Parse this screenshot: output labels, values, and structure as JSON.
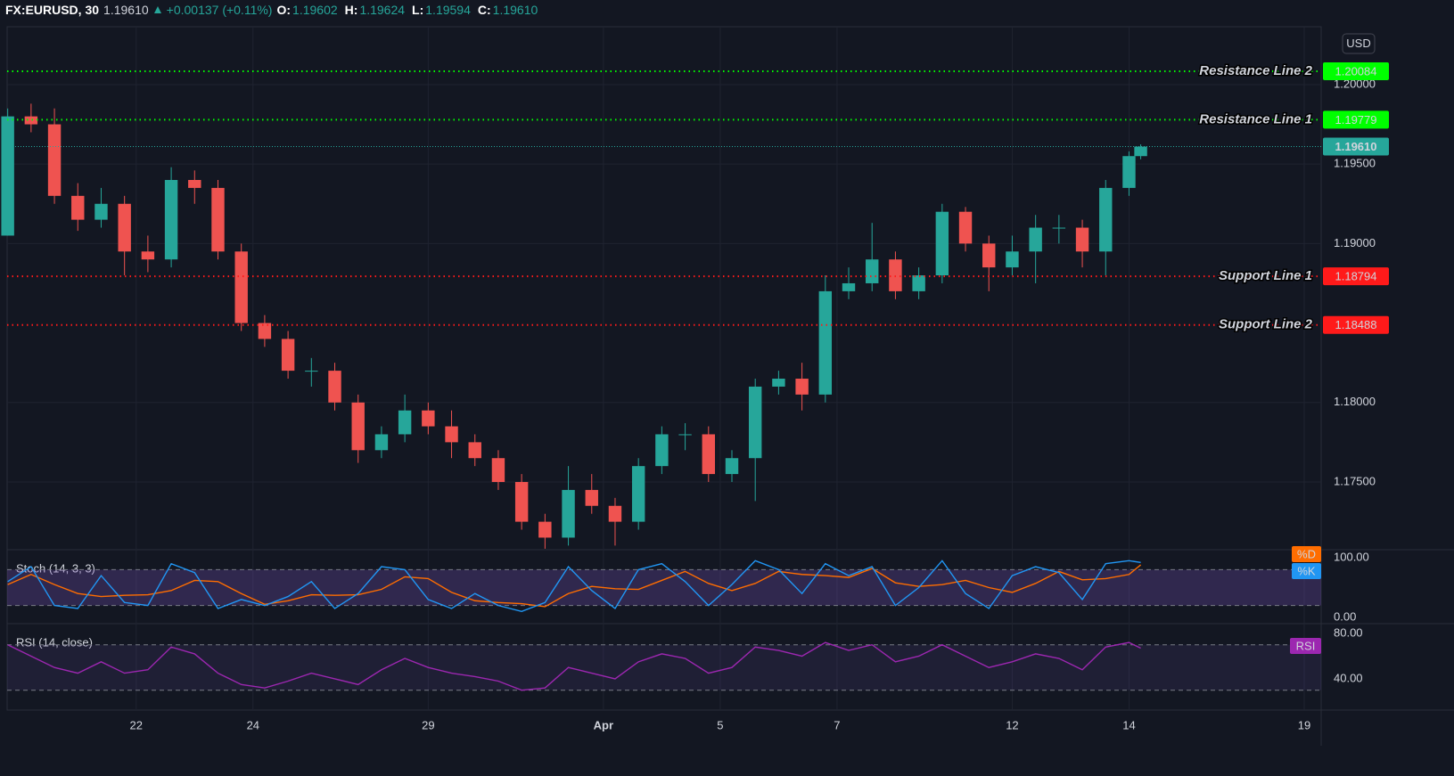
{
  "chart_data": [
    {
      "type": "candlestick",
      "header": {
        "symbol": "FX:EURUSD, 30",
        "change": "+0.00137 (+0.11%)",
        "ohlc": [
          {
            "label": "O:",
            "value": "1.19602"
          },
          {
            "label": "H:",
            "value": "1.19624"
          },
          {
            "label": "L:",
            "value": "1.19594"
          },
          {
            "label": "C:",
            "value": "1.19610"
          }
        ]
      },
      "currency": "USD",
      "up_color": "#26a69a",
      "down_color": "#ef5350",
      "x": [
        -0.2,
        0.2,
        0.6,
        1.0,
        1.4,
        1.8,
        2.2,
        2.6,
        3.0,
        3.4,
        3.8,
        4.2,
        4.6,
        5.0,
        5.4,
        5.8,
        6.2,
        6.6,
        7.0,
        7.4,
        7.8,
        8.2,
        8.6,
        9.0,
        9.4,
        9.8,
        10.2,
        10.6,
        11.0,
        11.4,
        11.8,
        12.2,
        12.6,
        13.0,
        13.4,
        13.8,
        14.2,
        14.6,
        15.0,
        15.4,
        15.8,
        16.2,
        16.6,
        17.0,
        17.4,
        17.8,
        18.2,
        18.6,
        19.0,
        19.2
      ],
      "open": [
        1.1905,
        1.198,
        1.1975,
        1.193,
        1.1915,
        1.1925,
        1.1895,
        1.189,
        1.194,
        1.1935,
        1.1895,
        1.185,
        1.184,
        1.182,
        1.182,
        1.18,
        1.177,
        1.178,
        1.1795,
        1.1785,
        1.1775,
        1.1765,
        1.175,
        1.1725,
        1.1715,
        1.1745,
        1.1735,
        1.1725,
        1.176,
        1.178,
        1.178,
        1.1755,
        1.1765,
        1.181,
        1.1815,
        1.1805,
        1.187,
        1.1875,
        1.189,
        1.187,
        1.188,
        1.192,
        1.19,
        1.1885,
        1.1895,
        1.191,
        1.191,
        1.1895,
        1.1935,
        1.1955
      ],
      "high": [
        1.1985,
        1.1988,
        1.1985,
        1.1938,
        1.1935,
        1.193,
        1.1905,
        1.1948,
        1.1946,
        1.194,
        1.19,
        1.1855,
        1.1845,
        1.1828,
        1.1825,
        1.1805,
        1.1785,
        1.1805,
        1.18,
        1.1795,
        1.178,
        1.177,
        1.1755,
        1.173,
        1.176,
        1.1755,
        1.174,
        1.1765,
        1.1785,
        1.1787,
        1.1785,
        1.177,
        1.1815,
        1.182,
        1.1825,
        1.188,
        1.1885,
        1.1913,
        1.1895,
        1.1885,
        1.1925,
        1.1923,
        1.1905,
        1.1905,
        1.1918,
        1.1918,
        1.1915,
        1.194,
        1.1958,
        1.19624
      ],
      "low": [
        1.1905,
        1.197,
        1.1925,
        1.1908,
        1.191,
        1.188,
        1.1882,
        1.1885,
        1.1925,
        1.189,
        1.1845,
        1.1835,
        1.1815,
        1.181,
        1.1795,
        1.1762,
        1.1765,
        1.1775,
        1.178,
        1.1765,
        1.176,
        1.1745,
        1.172,
        1.1708,
        1.171,
        1.173,
        1.171,
        1.172,
        1.1755,
        1.177,
        1.175,
        1.175,
        1.1738,
        1.1805,
        1.1795,
        1.18,
        1.1865,
        1.187,
        1.1865,
        1.1865,
        1.1875,
        1.1895,
        1.187,
        1.188,
        1.1875,
        1.19,
        1.1885,
        1.188,
        1.193,
        1.1953
      ],
      "close": [
        1.198,
        1.1975,
        1.193,
        1.1915,
        1.1925,
        1.1895,
        1.189,
        1.194,
        1.1935,
        1.1895,
        1.185,
        1.184,
        1.182,
        1.182,
        1.18,
        1.177,
        1.178,
        1.1795,
        1.1785,
        1.1775,
        1.1765,
        1.175,
        1.1725,
        1.1715,
        1.1745,
        1.1735,
        1.1725,
        1.176,
        1.178,
        1.178,
        1.1755,
        1.1765,
        1.181,
        1.1815,
        1.1805,
        1.187,
        1.1875,
        1.189,
        1.187,
        1.188,
        1.192,
        1.19,
        1.1885,
        1.1895,
        1.191,
        1.191,
        1.1895,
        1.1935,
        1.1955,
        1.1961
      ],
      "last_price": {
        "value": 1.1961,
        "label": "1.19610",
        "color": "#26a69a"
      },
      "levels": [
        {
          "name": "Resistance Line 2",
          "value": 1.20084,
          "color": "#00ff00"
        },
        {
          "name": "Resistance Line 1",
          "value": 1.19779,
          "color": "#00ff00"
        },
        {
          "name": "Support Line 1",
          "value": 1.18794,
          "color": "#ff1a1a"
        },
        {
          "name": "Support Line 2",
          "value": 1.18488,
          "color": "#ff1a1a"
        }
      ],
      "xlim": [
        -0.21,
        22.29
      ],
      "xticks": [
        {
          "value": 2,
          "label": "22"
        },
        {
          "value": 4,
          "label": "24"
        },
        {
          "value": 7,
          "label": "29"
        },
        {
          "value": 10,
          "label": "Apr"
        },
        {
          "value": 12,
          "label": "5"
        },
        {
          "value": 14,
          "label": "7"
        },
        {
          "value": 17,
          "label": "12"
        },
        {
          "value": 19,
          "label": "14"
        },
        {
          "value": 22,
          "label": "19"
        }
      ],
      "ylim": [
        1.17074,
        1.20364
      ],
      "yticks": [
        {
          "value": 1.175,
          "label": "1.17500"
        },
        {
          "value": 1.18,
          "label": "1.18000"
        },
        {
          "value": 1.19,
          "label": "1.19000"
        },
        {
          "value": 1.195,
          "label": "1.19500"
        },
        {
          "value": 1.2,
          "label": "1.20000"
        }
      ],
      "grid": true
    },
    {
      "type": "line",
      "title": "Stoch (14, 3, 3)",
      "x": [
        -0.2,
        0.2,
        0.6,
        1.0,
        1.4,
        1.8,
        2.2,
        2.6,
        3.0,
        3.4,
        3.8,
        4.2,
        4.6,
        5.0,
        5.4,
        5.8,
        6.2,
        6.6,
        7.0,
        7.4,
        7.8,
        8.2,
        8.6,
        9.0,
        9.4,
        9.8,
        10.2,
        10.6,
        11.0,
        11.4,
        11.8,
        12.2,
        12.6,
        13.0,
        13.4,
        13.8,
        14.2,
        14.6,
        15.0,
        15.4,
        15.8,
        16.2,
        16.6,
        17.0,
        17.4,
        17.8,
        18.2,
        18.6,
        19.0,
        19.2
      ],
      "series": [
        {
          "name": "%D",
          "color": "#ff6d00",
          "values": [
            55,
            72,
            55,
            40,
            35,
            37,
            38,
            45,
            62,
            60,
            40,
            22,
            28,
            38,
            37,
            38,
            47,
            68,
            65,
            42,
            28,
            25,
            23,
            18,
            40,
            52,
            48,
            47,
            62,
            77,
            57,
            45,
            57,
            77,
            72,
            70,
            67,
            82,
            58,
            52,
            55,
            62,
            50,
            42,
            57,
            77,
            63,
            65,
            72,
            88
          ]
        },
        {
          "name": "%K",
          "color": "#2196f3",
          "values": [
            60,
            85,
            20,
            15,
            70,
            25,
            20,
            90,
            75,
            15,
            30,
            20,
            35,
            60,
            15,
            40,
            85,
            80,
            30,
            15,
            40,
            20,
            10,
            25,
            85,
            45,
            15,
            80,
            90,
            60,
            20,
            55,
            95,
            80,
            40,
            90,
            70,
            85,
            20,
            50,
            95,
            40,
            15,
            70,
            85,
            75,
            30,
            90,
            95,
            92
          ]
        }
      ],
      "bands": [
        20,
        80
      ],
      "ylim": [
        -10.4,
        113.4
      ],
      "yticks": [
        {
          "value": 100,
          "label": "100.00"
        },
        {
          "value": 0,
          "label": "0.00"
        }
      ]
    },
    {
      "type": "line",
      "title": "RSI (14, close)",
      "x": [
        -0.2,
        0.2,
        0.6,
        1.0,
        1.4,
        1.8,
        2.2,
        2.6,
        3.0,
        3.4,
        3.8,
        4.2,
        4.6,
        5.0,
        5.4,
        5.8,
        6.2,
        6.6,
        7.0,
        7.4,
        7.8,
        8.2,
        8.6,
        9.0,
        9.4,
        9.8,
        10.2,
        10.6,
        11.0,
        11.4,
        11.8,
        12.2,
        12.6,
        13.0,
        13.4,
        13.8,
        14.2,
        14.6,
        15.0,
        15.4,
        15.8,
        16.2,
        16.6,
        17.0,
        17.4,
        17.8,
        18.2,
        18.6,
        19.0,
        19.2
      ],
      "series": [
        {
          "name": "RSI",
          "color": "#9c27b0",
          "values": [
            70,
            60,
            50,
            45,
            55,
            45,
            48,
            68,
            62,
            45,
            35,
            32,
            38,
            45,
            40,
            35,
            48,
            58,
            50,
            45,
            42,
            38,
            30,
            32,
            50,
            45,
            40,
            55,
            62,
            58,
            45,
            50,
            68,
            65,
            60,
            72,
            65,
            70,
            55,
            60,
            70,
            60,
            50,
            55,
            62,
            58,
            48,
            68,
            72,
            67
          ]
        }
      ],
      "bands": [
        30,
        70
      ],
      "ylim": [
        12.5,
        88.6
      ],
      "yticks": [
        {
          "value": 80,
          "label": "80.00"
        },
        {
          "value": 40,
          "label": "40.00"
        }
      ]
    }
  ]
}
